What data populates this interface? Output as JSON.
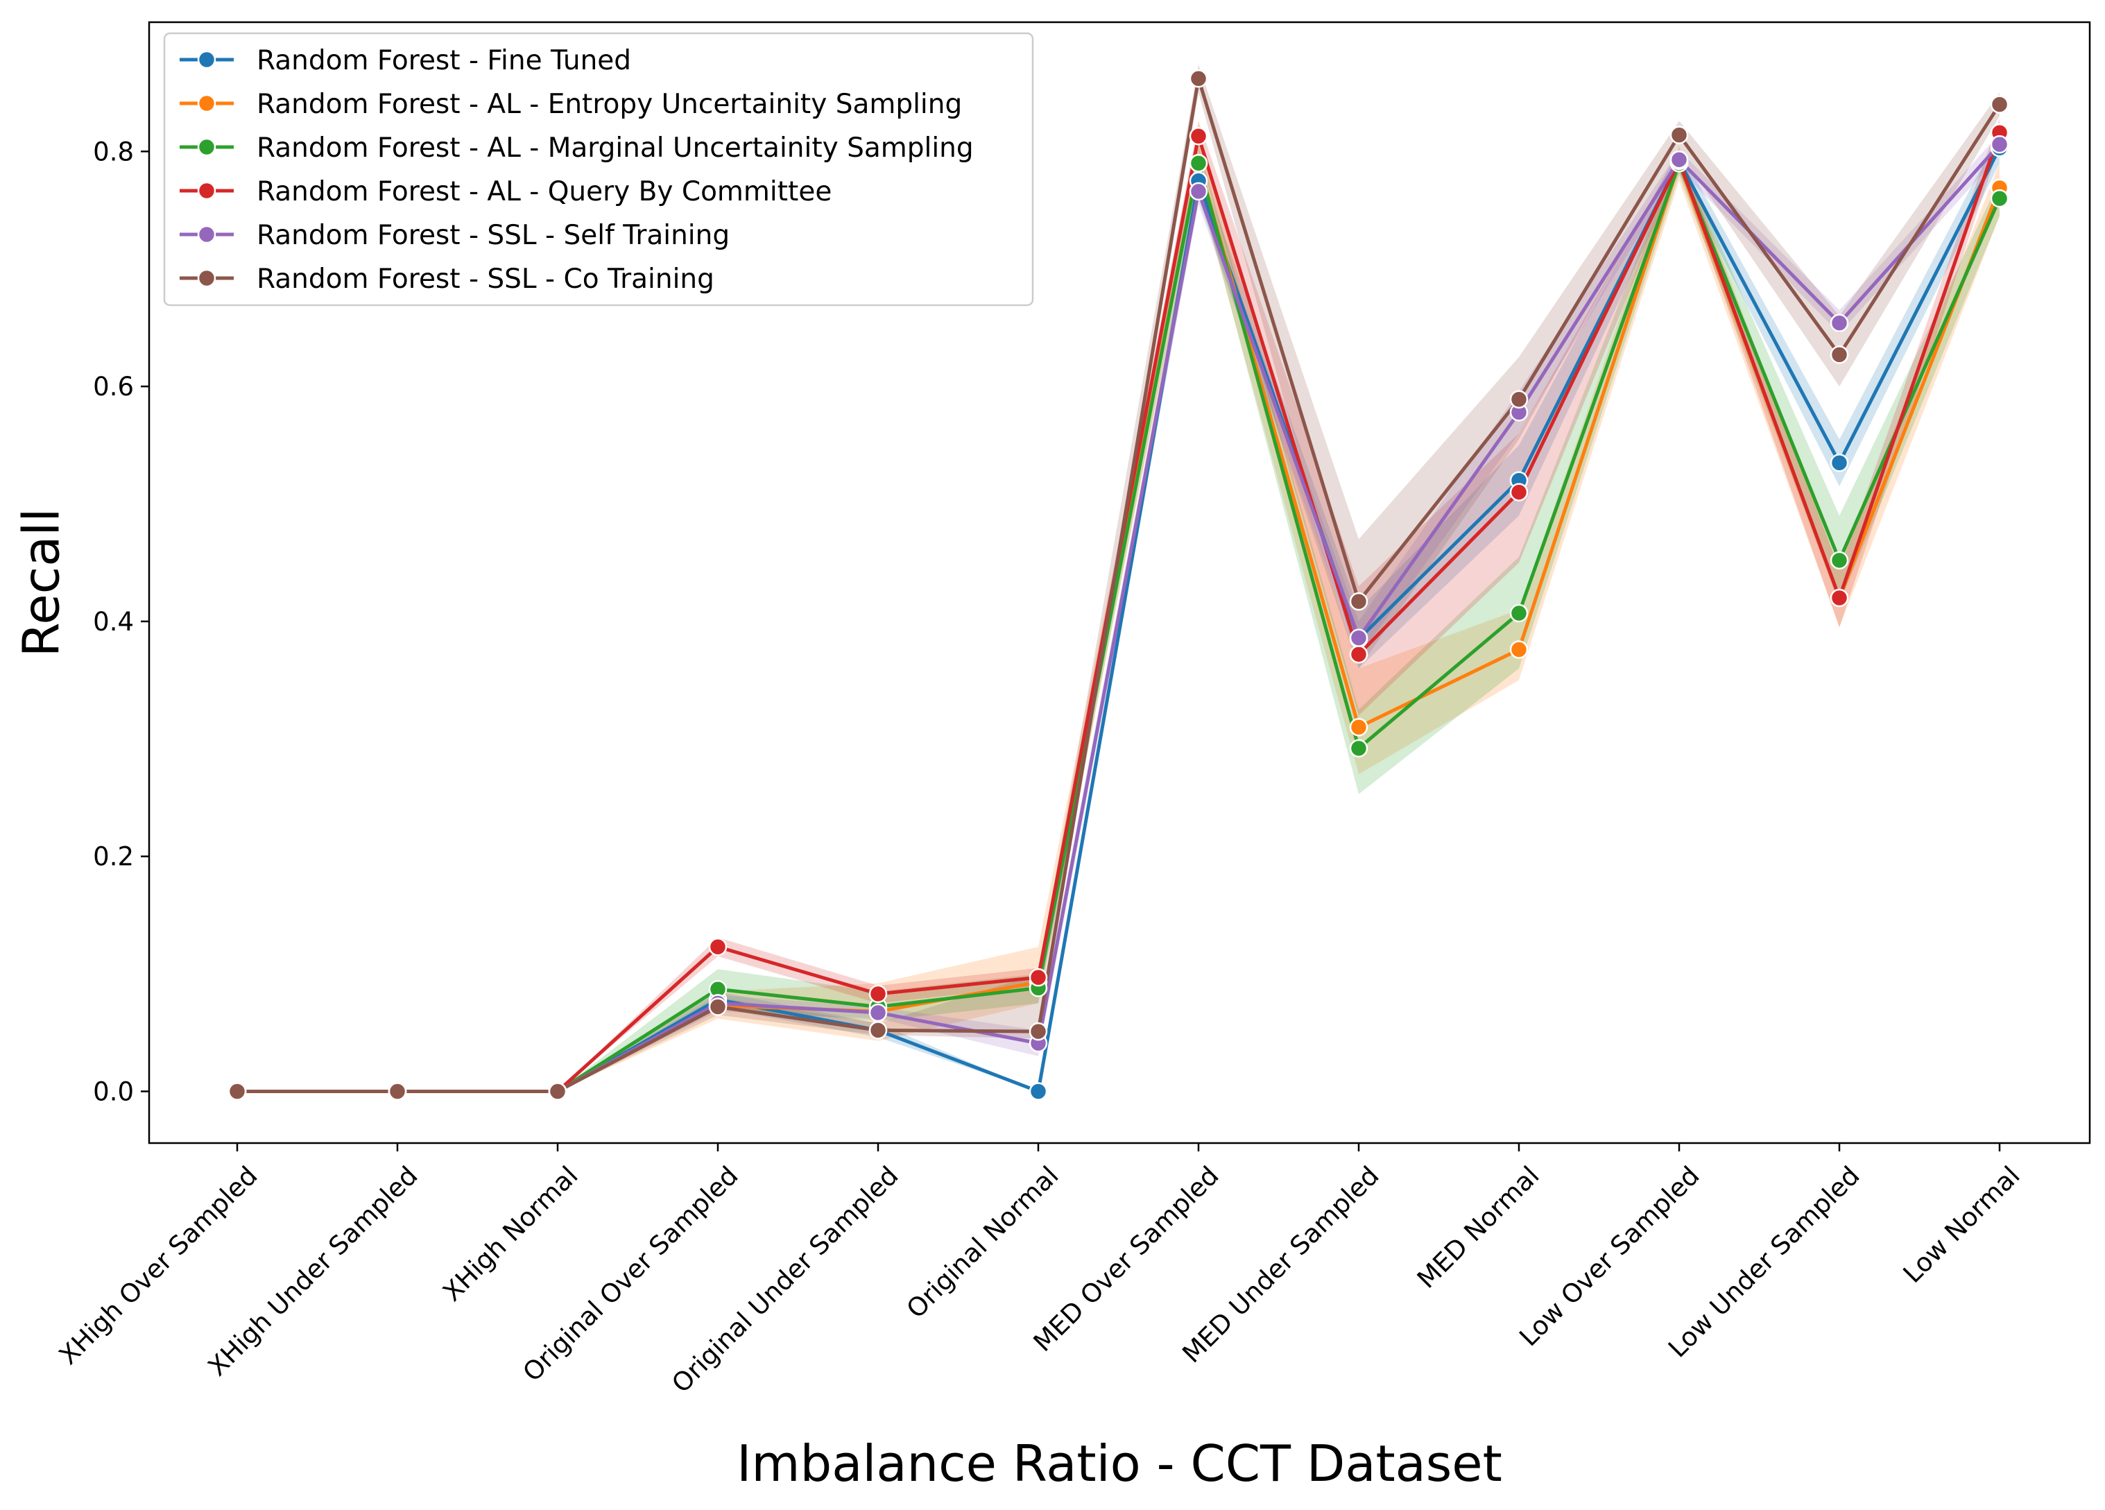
{
  "chart_data": {
    "type": "line",
    "title": "",
    "xlabel": "Imbalance Ratio - CCT Dataset",
    "ylabel": "Recall",
    "ylim": [
      -0.044,
      0.91
    ],
    "yticks": [
      0.0,
      0.2,
      0.4,
      0.6,
      0.8
    ],
    "ytick_labels": [
      "0.0",
      "0.2",
      "0.4",
      "0.6",
      "0.8"
    ],
    "grid": false,
    "legend_position": "top-left",
    "categories": [
      "XHigh Over Sampled",
      "XHigh Under Sampled",
      "XHigh Normal",
      "Original Over Sampled",
      "Original Under Sampled",
      "Original Normal",
      "MED Over Sampled",
      "MED Under Sampled",
      "MED Normal",
      "Low Over Sampled",
      "Low Under Sampled",
      "Low Normal"
    ],
    "series": [
      {
        "name": "Random Forest - Fine Tuned",
        "color": "#1f77b4",
        "values": [
          0.0,
          0.0,
          0.0,
          0.078,
          0.052,
          0.0,
          0.775,
          0.385,
          0.52,
          0.792,
          0.535,
          0.803
        ],
        "band_lower": [
          0.0,
          0.0,
          0.0,
          0.071,
          0.046,
          0.0,
          0.76,
          0.36,
          0.49,
          0.782,
          0.515,
          0.79
        ],
        "band_upper": [
          0.0,
          0.0,
          0.0,
          0.085,
          0.058,
          0.0,
          0.79,
          0.41,
          0.55,
          0.802,
          0.555,
          0.816
        ]
      },
      {
        "name": "Random Forest - AL - Entropy Uncertainity Sampling",
        "color": "#ff7f0e",
        "values": [
          0.0,
          0.0,
          0.0,
          0.073,
          0.068,
          0.093,
          0.79,
          0.31,
          0.376,
          0.79,
          0.42,
          0.769
        ],
        "band_lower": [
          0.0,
          0.0,
          0.0,
          0.062,
          0.043,
          0.075,
          0.768,
          0.27,
          0.35,
          0.775,
          0.395,
          0.745
        ],
        "band_upper": [
          0.0,
          0.0,
          0.0,
          0.085,
          0.092,
          0.123,
          0.81,
          0.36,
          0.41,
          0.805,
          0.445,
          0.79
        ]
      },
      {
        "name": "Random Forest - AL - Marginal Uncertainity Sampling",
        "color": "#2ca02c",
        "values": [
          0.0,
          0.0,
          0.0,
          0.087,
          0.072,
          0.088,
          0.79,
          0.292,
          0.407,
          0.79,
          0.452,
          0.76
        ],
        "band_lower": [
          0.0,
          0.0,
          0.0,
          0.07,
          0.06,
          0.075,
          0.772,
          0.253,
          0.36,
          0.78,
          0.415,
          0.745
        ],
        "band_upper": [
          0.0,
          0.0,
          0.0,
          0.104,
          0.085,
          0.1,
          0.805,
          0.325,
          0.455,
          0.8,
          0.49,
          0.775
        ]
      },
      {
        "name": "Random Forest - AL - Query By Committee",
        "color": "#d62728",
        "values": [
          0.0,
          0.0,
          0.0,
          0.123,
          0.083,
          0.097,
          0.813,
          0.372,
          0.51,
          0.792,
          0.42,
          0.816
        ],
        "band_lower": [
          0.0,
          0.0,
          0.0,
          0.115,
          0.075,
          0.09,
          0.8,
          0.32,
          0.45,
          0.785,
          0.395,
          0.805
        ],
        "band_upper": [
          0.0,
          0.0,
          0.0,
          0.131,
          0.09,
          0.105,
          0.826,
          0.43,
          0.56,
          0.8,
          0.445,
          0.828
        ]
      },
      {
        "name": "Random Forest - SSL - Self Training",
        "color": "#9467bd",
        "values": [
          0.0,
          0.0,
          0.0,
          0.075,
          0.067,
          0.041,
          0.766,
          0.386,
          0.578,
          0.793,
          0.654,
          0.806
        ],
        "band_lower": [
          0.0,
          0.0,
          0.0,
          0.068,
          0.062,
          0.03,
          0.755,
          0.37,
          0.56,
          0.785,
          0.645,
          0.797
        ],
        "band_upper": [
          0.0,
          0.0,
          0.0,
          0.082,
          0.072,
          0.052,
          0.777,
          0.4,
          0.596,
          0.801,
          0.665,
          0.815
        ]
      },
      {
        "name": "Random Forest - SSL - Co Training",
        "color": "#8c564b",
        "values": [
          0.0,
          0.0,
          0.0,
          0.072,
          0.052,
          0.051,
          0.862,
          0.417,
          0.589,
          0.814,
          0.627,
          0.84
        ],
        "band_lower": [
          0.0,
          0.0,
          0.0,
          0.065,
          0.048,
          0.045,
          0.85,
          0.36,
          0.555,
          0.8,
          0.6,
          0.83
        ],
        "band_upper": [
          0.0,
          0.0,
          0.0,
          0.08,
          0.058,
          0.1,
          0.874,
          0.47,
          0.625,
          0.826,
          0.66,
          0.85
        ]
      }
    ]
  }
}
